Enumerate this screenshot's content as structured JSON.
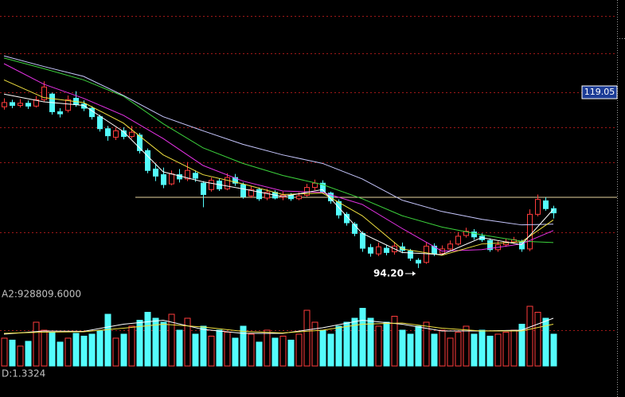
{
  "chart_data": [
    {
      "type": "candlestick",
      "ylim": [
        91.94,
        132.1
      ],
      "grid": true,
      "grid_values": [
        129.8,
        124.6,
        119.05,
        114.1,
        109.15,
        99.25
      ],
      "up_color": "#ff3c3c",
      "down_color": "#54fcfc",
      "open": [
        117.0,
        117.6,
        117.2,
        117.5,
        117.1,
        118.0,
        118.8,
        116.3,
        116.5,
        118.2,
        117.4,
        116.8,
        115.6,
        113.9,
        112.7,
        113.6,
        112.8,
        113.0,
        110.8,
        108.2,
        107.4,
        106.1,
        107.4,
        106.8,
        107.6,
        106.2,
        105.3,
        106.5,
        105.4,
        107.0,
        106.0,
        104.4,
        105.3,
        104.1,
        104.9,
        104.2,
        104.5,
        104.0,
        104.5,
        105.6,
        106.2,
        104.8,
        103.6,
        101.8,
        100.4,
        99.1,
        97.1,
        96.2,
        97.0,
        96.5,
        97.2,
        96.6,
        95.3,
        95.0,
        97.3,
        96.3,
        96.9,
        97.6,
        98.8,
        99.3,
        98.7,
        98.1,
        96.8,
        97.5,
        97.9,
        97.9,
        96.9,
        101.8,
        103.7,
        102.6
      ],
      "close": [
        117.6,
        117.2,
        117.5,
        117.1,
        118.0,
        119.8,
        116.3,
        116.0,
        118.0,
        117.3,
        116.8,
        115.6,
        113.9,
        112.9,
        113.6,
        112.8,
        113.4,
        110.8,
        108.0,
        107.2,
        106.0,
        107.5,
        106.8,
        108.0,
        106.9,
        104.6,
        106.6,
        105.4,
        107.0,
        106.2,
        104.3,
        105.3,
        104.0,
        104.9,
        104.1,
        104.5,
        104.0,
        104.4,
        105.6,
        106.2,
        105.0,
        103.7,
        101.7,
        100.6,
        99.1,
        97.0,
        96.3,
        97.2,
        96.4,
        97.3,
        96.7,
        95.6,
        94.9,
        97.3,
        96.2,
        96.9,
        97.6,
        98.7,
        99.4,
        98.6,
        98.2,
        96.8,
        97.5,
        97.9,
        98.2,
        96.9,
        101.8,
        103.9,
        102.6,
        102.0
      ],
      "high": [
        118.2,
        118.0,
        118.1,
        117.9,
        118.5,
        120.6,
        119.0,
        116.8,
        118.6,
        119.2,
        117.9,
        117.1,
        115.9,
        114.3,
        114.0,
        114.1,
        114.3,
        113.3,
        111.1,
        109.0,
        108.4,
        108.0,
        108.2,
        109.2,
        108.0,
        106.5,
        107.0,
        106.9,
        107.6,
        107.5,
        106.3,
        105.8,
        105.6,
        105.4,
        105.2,
        105.0,
        104.8,
        104.9,
        106.1,
        106.7,
        106.6,
        105.0,
        103.9,
        102.1,
        100.7,
        99.4,
        97.6,
        97.8,
        97.4,
        97.9,
        97.8,
        96.9,
        95.6,
        97.8,
        97.7,
        97.4,
        98.1,
        99.3,
        99.9,
        99.7,
        99.1,
        98.4,
        98.0,
        98.3,
        98.6,
        98.2,
        102.5,
        104.6,
        104.2,
        103.0
      ],
      "low": [
        116.6,
        116.8,
        116.9,
        116.7,
        116.9,
        117.7,
        115.9,
        115.5,
        116.2,
        117.0,
        116.4,
        115.2,
        113.5,
        112.2,
        112.3,
        112.4,
        112.5,
        110.4,
        107.6,
        106.5,
        105.5,
        105.9,
        106.3,
        106.5,
        106.4,
        102.8,
        105.0,
        105.1,
        105.2,
        105.8,
        104.0,
        104.1,
        103.7,
        103.8,
        103.9,
        103.8,
        103.7,
        103.8,
        104.3,
        105.2,
        104.7,
        103.3,
        101.2,
        100.2,
        98.7,
        96.5,
        95.8,
        95.9,
        96.0,
        96.1,
        96.3,
        95.2,
        94.2,
        94.8,
        95.9,
        96.0,
        96.6,
        97.4,
        98.5,
        98.2,
        97.9,
        96.5,
        96.5,
        97.2,
        97.6,
        96.5,
        96.6,
        101.5,
        102.3,
        101.2
      ],
      "lines": [
        {
          "color": "#c8c8ff",
          "x": [
            0,
            5,
            10,
            15,
            20,
            25,
            30,
            35,
            40,
            45,
            50,
            55,
            60,
            65,
            69
          ],
          "values": [
            124.2,
            122.7,
            121.3,
            118.6,
            115.6,
            113.6,
            111.7,
            110.2,
            109.0,
            106.8,
            103.8,
            102.2,
            101.1,
            100.3,
            100.4
          ]
        },
        {
          "color": "#3cd23c",
          "x": [
            0,
            5,
            10,
            15,
            20,
            25,
            30,
            35,
            40,
            45,
            50,
            55,
            60,
            65,
            69
          ],
          "values": [
            123.9,
            122.4,
            120.8,
            118.5,
            114.6,
            111.2,
            109.0,
            107.3,
            106.0,
            104.0,
            101.6,
            100.0,
            98.9,
            98.0,
            97.8
          ]
        },
        {
          "color": "#e632e6",
          "x": [
            0,
            5,
            10,
            15,
            20,
            25,
            30,
            35,
            40,
            45,
            50,
            55,
            60,
            65,
            69
          ],
          "values": [
            123.1,
            120.2,
            118.2,
            115.8,
            112.5,
            108.7,
            106.5,
            105.1,
            104.9,
            103.2,
            99.8,
            96.6,
            96.8,
            97.6,
            99.5
          ]
        },
        {
          "color": "#f0e040",
          "x": [
            0,
            5,
            10,
            15,
            20,
            25,
            30,
            35,
            40,
            45,
            50,
            55,
            60,
            65,
            69
          ],
          "values": [
            120.8,
            118.3,
            117.6,
            114.7,
            110.2,
            107.4,
            106.1,
            104.6,
            104.8,
            101.6,
            96.9,
            96.0,
            97.6,
            97.9,
            101.0
          ]
        },
        {
          "color": "#ffffff",
          "x": [
            0,
            5,
            10,
            15,
            20,
            25,
            30,
            35,
            40,
            45,
            50,
            55,
            60,
            65,
            69
          ],
          "values": [
            118.8,
            117.7,
            117.2,
            113.5,
            107.8,
            106.4,
            105.4,
            104.3,
            105.3,
            99.1,
            96.4,
            96.1,
            98.5,
            97.5,
            102.5
          ]
        }
      ],
      "reference_line": 104.2,
      "reference_color": "#e8d6a0",
      "price_marker": 119.05,
      "low_marker": {
        "value": 94.2,
        "label": "94.20"
      }
    },
    {
      "type": "bar",
      "label": "A2:928809.6000",
      "ylim": [
        0,
        1600000
      ],
      "grid": true,
      "grid_values": [
        900000
      ],
      "values": [
        700000,
        650000,
        500000,
        620000,
        1100000,
        900000,
        850000,
        600000,
        700000,
        820000,
        750000,
        800000,
        880000,
        1300000,
        700000,
        800000,
        1000000,
        1150000,
        1350000,
        1200000,
        1100000,
        1300000,
        900000,
        1200000,
        800000,
        1000000,
        750000,
        900000,
        850000,
        700000,
        1000000,
        800000,
        600000,
        900000,
        700000,
        750000,
        650000,
        800000,
        1400000,
        1100000,
        900000,
        800000,
        1000000,
        1100000,
        1200000,
        1450000,
        1200000,
        1000000,
        1100000,
        1250000,
        900000,
        800000,
        1000000,
        1100000,
        800000,
        900000,
        700000,
        850000,
        1000000,
        800000,
        900000,
        750000,
        800000,
        850000,
        900000,
        1050000,
        1500000,
        1350000,
        1200000,
        800000
      ],
      "lines": [
        {
          "color": "#ffffff",
          "x": [
            0,
            5,
            10,
            15,
            20,
            25,
            30,
            35,
            40,
            45,
            50,
            55,
            60,
            65,
            69
          ],
          "values": [
            800000,
            880000,
            870000,
            1050000,
            1150000,
            920000,
            820000,
            820000,
            960000,
            1150000,
            1050000,
            880000,
            880000,
            900000,
            1200000
          ]
        },
        {
          "color": "#f0e040",
          "x": [
            0,
            5,
            10,
            15,
            20,
            25,
            30,
            35,
            40,
            45,
            50,
            55,
            60,
            65,
            69
          ],
          "values": [
            820000,
            850000,
            860000,
            950000,
            1050000,
            980000,
            870000,
            830000,
            900000,
            1050000,
            1080000,
            950000,
            880000,
            880000,
            1050000
          ]
        }
      ]
    },
    {
      "type": "indicator",
      "label": "D:1.3324"
    }
  ]
}
